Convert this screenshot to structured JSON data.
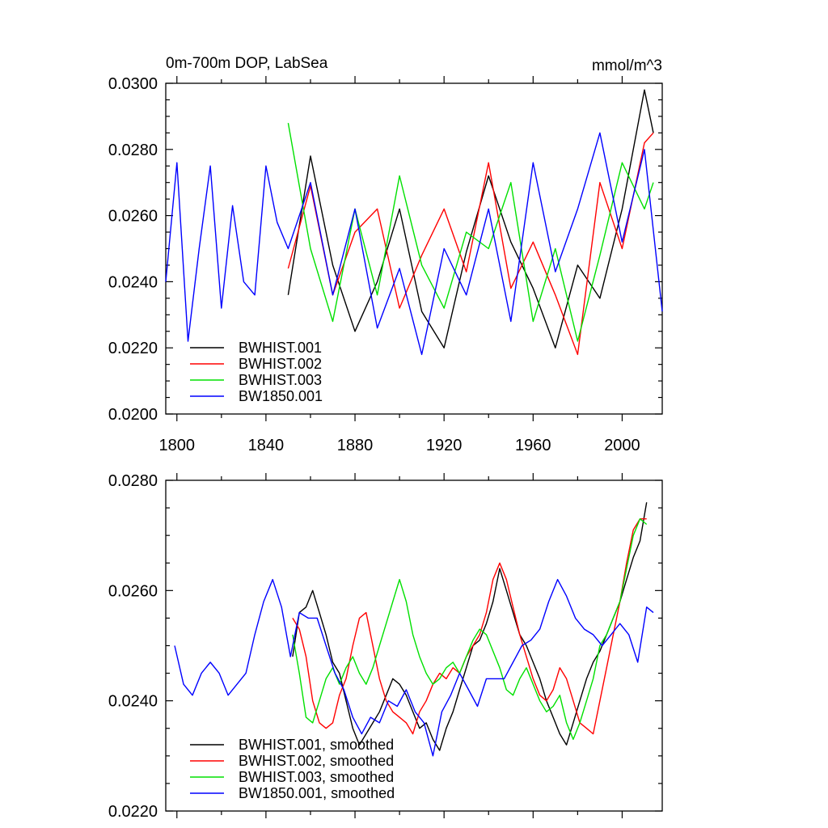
{
  "chart_data": [
    {
      "type": "line",
      "title": "0m-700m DOP, LabSea",
      "units": "mmol/m^3",
      "xlabel": "",
      "ylabel": "",
      "xlim": [
        1795,
        2018
      ],
      "ylim": [
        0.02,
        0.03
      ],
      "x_ticks": [
        1800,
        1840,
        1880,
        1920,
        1960,
        2000
      ],
      "x_tick_labels": [
        "1800",
        "1840",
        "1880",
        "1920",
        "1960",
        "2000"
      ],
      "y_ticks": [
        0.02,
        0.022,
        0.024,
        0.026,
        0.028,
        0.03
      ],
      "y_tick_labels": [
        "0.0200",
        "0.0220",
        "0.0240",
        "0.0260",
        "0.0280",
        "0.0300"
      ],
      "grid": false,
      "legend": "bottom-left",
      "series": [
        {
          "name": "BWHIST.001",
          "color": "#000000",
          "x": [
            1850,
            1860,
            1870,
            1880,
            1890,
            1900,
            1910,
            1920,
            1930,
            1940,
            1950,
            1960,
            1970,
            1980,
            1990,
            2000,
            2010,
            2014
          ],
          "values": [
            0.0236,
            0.0278,
            0.0245,
            0.0225,
            0.024,
            0.0262,
            0.0231,
            0.022,
            0.0249,
            0.0272,
            0.0252,
            0.0238,
            0.022,
            0.0245,
            0.0235,
            0.0262,
            0.0298,
            0.0285
          ]
        },
        {
          "name": "BWHIST.002",
          "color": "#ff0000",
          "x": [
            1850,
            1860,
            1870,
            1880,
            1890,
            1900,
            1910,
            1920,
            1930,
            1940,
            1950,
            1960,
            1970,
            1980,
            1990,
            2000,
            2010,
            2014
          ],
          "values": [
            0.0244,
            0.0269,
            0.0236,
            0.0255,
            0.0262,
            0.0232,
            0.0248,
            0.0262,
            0.0243,
            0.0276,
            0.0238,
            0.0252,
            0.0236,
            0.0218,
            0.027,
            0.025,
            0.0282,
            0.0285
          ]
        },
        {
          "name": "BWHIST.003",
          "color": "#00e000",
          "x": [
            1850,
            1860,
            1870,
            1880,
            1890,
            1900,
            1910,
            1920,
            1930,
            1940,
            1950,
            1960,
            1970,
            1980,
            1990,
            2000,
            2010,
            2014
          ],
          "values": [
            0.0288,
            0.025,
            0.0228,
            0.0262,
            0.0236,
            0.0272,
            0.0245,
            0.0232,
            0.0255,
            0.025,
            0.027,
            0.0228,
            0.025,
            0.0222,
            0.0248,
            0.0276,
            0.0262,
            0.027
          ]
        },
        {
          "name": "BW1850.001",
          "color": "#0000ff",
          "x": [
            1795,
            1800,
            1805,
            1810,
            1815,
            1820,
            1825,
            1830,
            1835,
            1840,
            1845,
            1850,
            1860,
            1870,
            1880,
            1890,
            1900,
            1910,
            1920,
            1930,
            1940,
            1950,
            1960,
            1970,
            1980,
            1990,
            2000,
            2010,
            2018
          ],
          "values": [
            0.024,
            0.0276,
            0.0222,
            0.025,
            0.0275,
            0.0232,
            0.0263,
            0.024,
            0.0236,
            0.0275,
            0.0258,
            0.025,
            0.027,
            0.0236,
            0.0262,
            0.0226,
            0.0244,
            0.0218,
            0.025,
            0.0236,
            0.0262,
            0.0228,
            0.0276,
            0.0243,
            0.0262,
            0.0285,
            0.0252,
            0.028,
            0.0231
          ]
        }
      ]
    },
    {
      "type": "line",
      "title": "",
      "xlabel": "",
      "ylabel": "",
      "xlim": [
        1795,
        2018
      ],
      "ylim": [
        0.022,
        0.028
      ],
      "x_ticks": [
        1800,
        1840,
        1880,
        1920,
        1960,
        2000
      ],
      "y_ticks": [
        0.022,
        0.024,
        0.026,
        0.028
      ],
      "y_tick_labels": [
        "0.0220",
        "0.0240",
        "0.0260",
        "0.0280"
      ],
      "grid": false,
      "legend": "bottom-left",
      "series": [
        {
          "name": "BWHIST.001, smoothed",
          "color": "#000000",
          "x": [
            1852,
            1855,
            1858,
            1861,
            1864,
            1867,
            1870,
            1873,
            1876,
            1879,
            1882,
            1885,
            1888,
            1891,
            1894,
            1897,
            1900,
            1903,
            1906,
            1909,
            1912,
            1915,
            1918,
            1921,
            1924,
            1927,
            1930,
            1933,
            1936,
            1939,
            1942,
            1945,
            1948,
            1951,
            1954,
            1957,
            1960,
            1963,
            1966,
            1969,
            1972,
            1975,
            1978,
            1981,
            1984,
            1987,
            1990,
            1993,
            1996,
            1999,
            2002,
            2005,
            2008,
            2011
          ],
          "values": [
            0.0248,
            0.0256,
            0.0257,
            0.026,
            0.0256,
            0.0252,
            0.0247,
            0.0245,
            0.024,
            0.0235,
            0.0232,
            0.0234,
            0.0236,
            0.0238,
            0.0241,
            0.0244,
            0.0243,
            0.0241,
            0.0238,
            0.0235,
            0.0236,
            0.0233,
            0.0231,
            0.0235,
            0.0238,
            0.0242,
            0.0246,
            0.025,
            0.0251,
            0.0254,
            0.0258,
            0.0264,
            0.026,
            0.0256,
            0.0252,
            0.025,
            0.0247,
            0.0244,
            0.024,
            0.0237,
            0.0234,
            0.0232,
            0.0236,
            0.024,
            0.0244,
            0.0247,
            0.0249,
            0.0252,
            0.0255,
            0.0258,
            0.0262,
            0.0266,
            0.0269,
            0.0276
          ]
        },
        {
          "name": "BWHIST.002, smoothed",
          "color": "#ff0000",
          "x": [
            1852,
            1855,
            1858,
            1861,
            1864,
            1867,
            1870,
            1873,
            1876,
            1879,
            1882,
            1885,
            1888,
            1891,
            1894,
            1897,
            1900,
            1903,
            1906,
            1909,
            1912,
            1915,
            1918,
            1921,
            1924,
            1927,
            1930,
            1933,
            1936,
            1939,
            1942,
            1945,
            1948,
            1951,
            1954,
            1957,
            1960,
            1963,
            1966,
            1969,
            1972,
            1975,
            1978,
            1981,
            1984,
            1987,
            1990,
            1993,
            1996,
            1999,
            2002,
            2005,
            2008,
            2011
          ],
          "values": [
            0.0255,
            0.0253,
            0.0248,
            0.024,
            0.0236,
            0.0235,
            0.0236,
            0.0241,
            0.0244,
            0.025,
            0.0255,
            0.0256,
            0.025,
            0.0244,
            0.024,
            0.0238,
            0.0237,
            0.0236,
            0.0234,
            0.0238,
            0.024,
            0.0243,
            0.0245,
            0.0244,
            0.0246,
            0.0245,
            0.0248,
            0.025,
            0.0252,
            0.0256,
            0.0262,
            0.0265,
            0.0262,
            0.0257,
            0.0252,
            0.0248,
            0.0244,
            0.0241,
            0.024,
            0.0242,
            0.0246,
            0.0244,
            0.024,
            0.0236,
            0.0235,
            0.0234,
            0.024,
            0.0246,
            0.0252,
            0.0258,
            0.0265,
            0.0271,
            0.0273,
            0.0273
          ]
        },
        {
          "name": "BWHIST.003, smoothed",
          "color": "#00e000",
          "x": [
            1852,
            1855,
            1858,
            1861,
            1864,
            1867,
            1870,
            1873,
            1876,
            1879,
            1882,
            1885,
            1888,
            1891,
            1894,
            1897,
            1900,
            1903,
            1906,
            1909,
            1912,
            1915,
            1918,
            1921,
            1924,
            1927,
            1930,
            1933,
            1936,
            1939,
            1942,
            1945,
            1948,
            1951,
            1954,
            1957,
            1960,
            1963,
            1966,
            1969,
            1972,
            1975,
            1978,
            1981,
            1984,
            1987,
            1990,
            1993,
            1996,
            1999,
            2002,
            2005,
            2008,
            2011
          ],
          "values": [
            0.0252,
            0.0245,
            0.0237,
            0.0236,
            0.024,
            0.0244,
            0.0246,
            0.0243,
            0.0246,
            0.0248,
            0.0245,
            0.0243,
            0.0246,
            0.025,
            0.0254,
            0.0258,
            0.0262,
            0.0258,
            0.0252,
            0.0248,
            0.0245,
            0.0243,
            0.0244,
            0.0246,
            0.0247,
            0.0245,
            0.0248,
            0.0251,
            0.0253,
            0.0252,
            0.0249,
            0.0246,
            0.0242,
            0.0241,
            0.0244,
            0.0246,
            0.0243,
            0.024,
            0.0238,
            0.0239,
            0.0241,
            0.0236,
            0.0233,
            0.0236,
            0.024,
            0.0244,
            0.025,
            0.0252,
            0.0255,
            0.0258,
            0.0264,
            0.027,
            0.0273,
            0.0272
          ]
        },
        {
          "name": "BW1850.001, smoothed",
          "color": "#0000ff",
          "x": [
            1799,
            1803,
            1807,
            1811,
            1815,
            1819,
            1823,
            1827,
            1831,
            1835,
            1839,
            1843,
            1847,
            1851,
            1855,
            1859,
            1863,
            1867,
            1871,
            1875,
            1879,
            1883,
            1887,
            1891,
            1895,
            1899,
            1903,
            1907,
            1911,
            1915,
            1919,
            1923,
            1927,
            1931,
            1935,
            1939,
            1943,
            1947,
            1951,
            1955,
            1959,
            1963,
            1967,
            1971,
            1975,
            1979,
            1983,
            1987,
            1991,
            1995,
            1999,
            2003,
            2007,
            2011,
            2014
          ],
          "values": [
            0.025,
            0.0243,
            0.0241,
            0.0245,
            0.0247,
            0.0245,
            0.0241,
            0.0243,
            0.0245,
            0.0252,
            0.0258,
            0.0262,
            0.0257,
            0.0248,
            0.0256,
            0.0255,
            0.0255,
            0.025,
            0.0245,
            0.0242,
            0.0237,
            0.0234,
            0.0237,
            0.0236,
            0.024,
            0.0239,
            0.0242,
            0.0238,
            0.0236,
            0.023,
            0.0238,
            0.0241,
            0.0245,
            0.0242,
            0.0239,
            0.0244,
            0.0244,
            0.0244,
            0.0247,
            0.025,
            0.0251,
            0.0253,
            0.0258,
            0.0262,
            0.0259,
            0.0255,
            0.0253,
            0.0252,
            0.025,
            0.0252,
            0.0254,
            0.0252,
            0.0247,
            0.0257,
            0.0256
          ]
        }
      ]
    }
  ]
}
